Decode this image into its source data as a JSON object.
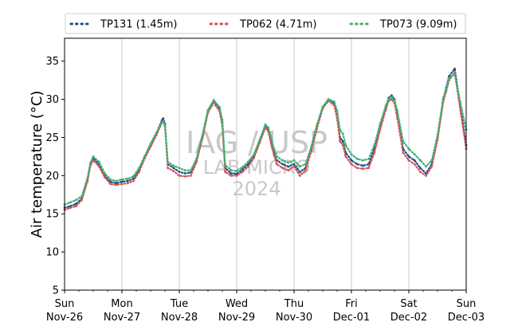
{
  "chart_data": {
    "type": "line",
    "title": "",
    "ylabel": "Air temperature (°C)",
    "xlabel": "",
    "ylim": [
      5,
      38
    ],
    "yticks": [
      5,
      10,
      15,
      20,
      25,
      30,
      35
    ],
    "xlim": [
      0,
      7
    ],
    "xticks": [
      {
        "x": 0,
        "day": "Sun",
        "date": "Nov-26"
      },
      {
        "x": 1,
        "day": "Mon",
        "date": "Nov-27"
      },
      {
        "x": 2,
        "day": "Tue",
        "date": "Nov-28"
      },
      {
        "x": 3,
        "day": "Wed",
        "date": "Nov-29"
      },
      {
        "x": 4,
        "day": "Thu",
        "date": "Nov-30"
      },
      {
        "x": 5,
        "day": "Fri",
        "date": "Dec-01"
      },
      {
        "x": 6,
        "day": "Sat",
        "date": "Dec-02"
      },
      {
        "x": 7,
        "day": "Sun",
        "date": "Dec-03"
      }
    ],
    "grid": "vertical-at-days",
    "legend_placement": "top",
    "watermark": [
      "IAG / USP",
      "LAB MICRO",
      "2024"
    ],
    "series": [
      {
        "name": "TP131 (1.45m)",
        "color": "#1f4e8c",
        "x": [
          0,
          0.1,
          0.2,
          0.3,
          0.4,
          0.45,
          0.5,
          0.6,
          0.7,
          0.8,
          0.9,
          1.0,
          1.1,
          1.2,
          1.3,
          1.4,
          1.5,
          1.6,
          1.7,
          1.72,
          1.75,
          1.8,
          1.9,
          2.0,
          2.1,
          2.2,
          2.3,
          2.4,
          2.5,
          2.6,
          2.7,
          2.75,
          2.8,
          2.9,
          3.0,
          3.1,
          3.2,
          3.3,
          3.4,
          3.5,
          3.55,
          3.6,
          3.65,
          3.7,
          3.8,
          3.9,
          4.0,
          4.1,
          4.2,
          4.3,
          4.4,
          4.5,
          4.6,
          4.7,
          4.75,
          4.8,
          4.85,
          4.9,
          5.0,
          5.1,
          5.2,
          5.3,
          5.4,
          5.5,
          5.6,
          5.65,
          5.7,
          5.75,
          5.8,
          5.9,
          6.0,
          6.1,
          6.2,
          6.3,
          6.4,
          6.5,
          6.6,
          6.65,
          6.7,
          6.8,
          6.9,
          7.0
        ],
        "values": [
          15.8,
          16.0,
          16.3,
          17.0,
          19.5,
          21.5,
          22.3,
          21.5,
          20.0,
          19.2,
          19.0,
          19.2,
          19.3,
          19.6,
          20.8,
          22.5,
          24.0,
          25.5,
          27.3,
          27.5,
          26.8,
          21.5,
          21.0,
          20.5,
          20.3,
          20.4,
          22.0,
          25.0,
          28.5,
          29.8,
          28.8,
          27.0,
          21.0,
          20.3,
          20.2,
          20.8,
          21.5,
          22.5,
          24.5,
          26.5,
          26.0,
          24.5,
          23.0,
          22.0,
          21.5,
          21.2,
          21.5,
          20.5,
          21.0,
          23.5,
          26.5,
          29.0,
          30.0,
          29.5,
          28.0,
          25.0,
          24.5,
          23.0,
          22.0,
          21.5,
          21.3,
          21.5,
          23.5,
          26.5,
          29.0,
          30.2,
          30.5,
          30.0,
          28.0,
          23.5,
          22.5,
          22.0,
          21.0,
          20.3,
          21.5,
          25.0,
          30.0,
          31.5,
          33.0,
          34.0,
          29.0,
          24.0
        ],
        "ticks_unused": []
      },
      {
        "name": "TP062 (4.71m)",
        "color": "#d45555",
        "x": [
          0,
          0.1,
          0.2,
          0.3,
          0.4,
          0.45,
          0.5,
          0.6,
          0.7,
          0.8,
          0.9,
          1.0,
          1.1,
          1.2,
          1.3,
          1.4,
          1.5,
          1.6,
          1.7,
          1.72,
          1.75,
          1.8,
          1.9,
          2.0,
          2.1,
          2.2,
          2.3,
          2.4,
          2.5,
          2.6,
          2.7,
          2.75,
          2.8,
          2.9,
          3.0,
          3.1,
          3.2,
          3.3,
          3.4,
          3.5,
          3.55,
          3.6,
          3.65,
          3.7,
          3.8,
          3.9,
          4.0,
          4.1,
          4.2,
          4.3,
          4.4,
          4.5,
          4.6,
          4.7,
          4.75,
          4.8,
          4.85,
          4.9,
          5.0,
          5.1,
          5.2,
          5.3,
          5.4,
          5.5,
          5.6,
          5.65,
          5.7,
          5.75,
          5.8,
          5.9,
          6.0,
          6.1,
          6.2,
          6.3,
          6.4,
          6.5,
          6.6,
          6.65,
          6.7,
          6.8,
          6.9,
          7.0
        ],
        "values": [
          15.5,
          15.8,
          16.0,
          16.8,
          19.3,
          21.3,
          22.0,
          21.2,
          19.8,
          18.9,
          18.8,
          18.9,
          19.0,
          19.3,
          20.5,
          22.3,
          23.8,
          25.3,
          27.0,
          27.2,
          26.5,
          21.0,
          20.6,
          20.0,
          19.9,
          20.0,
          21.8,
          24.8,
          28.3,
          29.5,
          28.5,
          26.5,
          20.5,
          20.0,
          20.0,
          20.5,
          21.2,
          22.3,
          24.3,
          26.3,
          25.8,
          24.2,
          22.7,
          21.5,
          21.0,
          20.7,
          21.2,
          20.0,
          20.7,
          23.2,
          26.2,
          28.8,
          29.8,
          29.2,
          27.5,
          24.5,
          24.0,
          22.5,
          21.5,
          21.0,
          20.9,
          21.0,
          23.0,
          26.0,
          28.7,
          29.8,
          30.0,
          29.5,
          27.5,
          23.0,
          22.0,
          21.5,
          20.5,
          20.0,
          21.2,
          24.7,
          29.7,
          31.0,
          32.5,
          33.5,
          28.5,
          23.5
        ]
      },
      {
        "name": "TP073 (9.09m)",
        "color": "#3cb371",
        "x": [
          0,
          0.1,
          0.2,
          0.3,
          0.4,
          0.45,
          0.5,
          0.6,
          0.7,
          0.8,
          0.9,
          1.0,
          1.1,
          1.2,
          1.3,
          1.4,
          1.5,
          1.6,
          1.7,
          1.72,
          1.75,
          1.8,
          1.9,
          2.0,
          2.1,
          2.2,
          2.3,
          2.4,
          2.5,
          2.6,
          2.7,
          2.75,
          2.8,
          2.9,
          3.0,
          3.1,
          3.2,
          3.3,
          3.4,
          3.5,
          3.55,
          3.6,
          3.65,
          3.7,
          3.8,
          3.9,
          4.0,
          4.1,
          4.2,
          4.3,
          4.4,
          4.5,
          4.6,
          4.7,
          4.75,
          4.8,
          4.85,
          4.9,
          5.0,
          5.1,
          5.2,
          5.3,
          5.4,
          5.5,
          5.6,
          5.65,
          5.7,
          5.75,
          5.8,
          5.9,
          6.0,
          6.1,
          6.2,
          6.3,
          6.4,
          6.5,
          6.6,
          6.65,
          6.7,
          6.8,
          6.9,
          7.0
        ],
        "values": [
          16.2,
          16.5,
          16.8,
          17.3,
          19.7,
          21.7,
          22.5,
          21.8,
          20.3,
          19.5,
          19.3,
          19.5,
          19.6,
          19.9,
          21.0,
          22.6,
          24.2,
          25.6,
          27.0,
          27.1,
          26.6,
          21.8,
          21.3,
          21.0,
          20.7,
          20.7,
          22.2,
          25.2,
          28.6,
          29.9,
          29.0,
          27.3,
          21.4,
          20.7,
          20.6,
          21.1,
          21.8,
          22.8,
          24.7,
          26.7,
          26.3,
          25.0,
          23.5,
          22.5,
          22.0,
          21.7,
          22.0,
          21.2,
          21.5,
          23.8,
          26.7,
          29.0,
          30.0,
          29.7,
          28.5,
          26.0,
          25.5,
          24.0,
          22.8,
          22.2,
          22.0,
          22.2,
          24.0,
          26.8,
          29.2,
          30.0,
          30.3,
          29.8,
          28.5,
          24.5,
          23.5,
          22.8,
          22.0,
          21.2,
          22.0,
          25.3,
          30.2,
          31.3,
          32.8,
          33.3,
          29.5,
          26.0
        ]
      }
    ]
  }
}
